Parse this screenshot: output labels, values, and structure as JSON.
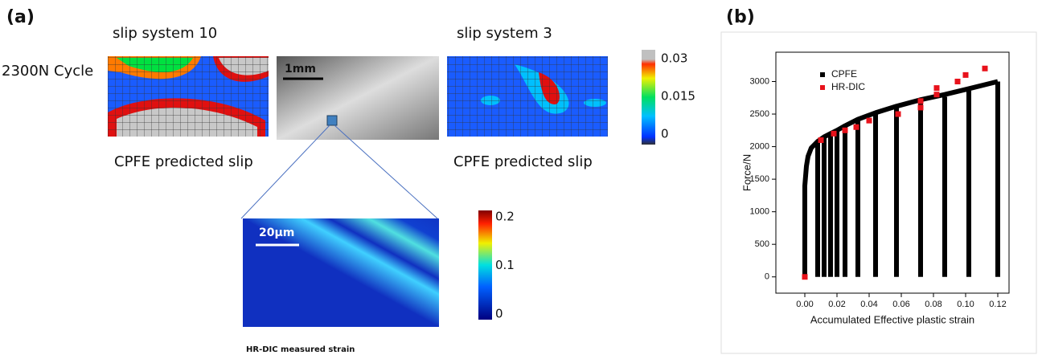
{
  "panel_a": {
    "label": "(a)",
    "title_left": "slip system 10",
    "title_right": "slip system 3",
    "row_label": "2300N Cycle",
    "scale_top": "1mm",
    "caption_left": "CPFE predicted slip",
    "caption_right": "CPFE predicted slip",
    "scale_bottom": "20µm",
    "caption_bottom": "HR-DIC measured strain",
    "colorbar_top": {
      "ticks": [
        0,
        0.015,
        0.03
      ],
      "lim": [
        0,
        0.03
      ]
    },
    "colorbar_bottom": {
      "ticks": [
        0,
        0.1,
        0.2
      ],
      "lim": [
        0,
        0.2
      ]
    }
  },
  "chart_data": {
    "type": "line",
    "label": "(b)",
    "x_label": "Accumulated Effective plastic strain",
    "y_label": "Force/N",
    "xlim": [
      -0.018,
      0.127
    ],
    "ylim": [
      -250,
      3450
    ],
    "xticks": [
      {
        "value": 0,
        "label": "0.00"
      },
      {
        "value": 0.02,
        "label": "0.02"
      },
      {
        "value": 0.04,
        "label": "0.04"
      },
      {
        "value": 0.06,
        "label": "0.06"
      },
      {
        "value": 0.08,
        "label": "0.08"
      },
      {
        "value": 0.1,
        "label": "0.10"
      },
      {
        "value": 0.12,
        "label": "0.12"
      }
    ],
    "yticks": [
      0,
      500,
      1000,
      1500,
      2000,
      2500,
      3000
    ],
    "legend": "upper-left",
    "series": [
      {
        "name": "CPFE",
        "color": "#000000",
        "kind": "line",
        "x": [
          0,
          0,
          0.001,
          0.002,
          0.004,
          0.008,
          0.012,
          0.016,
          0.02,
          0.025,
          0.033,
          0.044,
          0.057,
          0.072,
          0.087,
          0.102,
          0.12,
          null,
          0.008,
          0.008,
          null,
          0.012,
          0.012,
          null,
          0.016,
          0.016,
          null,
          0.02,
          0.02,
          null,
          0.025,
          0.025,
          null,
          0.033,
          0.033,
          null,
          0.044,
          0.044,
          null,
          0.057,
          0.057,
          null,
          0.072,
          0.072,
          null,
          0.087,
          0.087,
          null,
          0.102,
          0.102,
          null,
          0.12,
          0.12
        ],
        "values": [
          0,
          1400,
          1700,
          1850,
          1980,
          2080,
          2150,
          2200,
          2250,
          2320,
          2420,
          2520,
          2620,
          2720,
          2800,
          2890,
          3000,
          null,
          0,
          2080,
          null,
          0,
          2150,
          null,
          0,
          2200,
          null,
          0,
          2250,
          null,
          0,
          2320,
          null,
          0,
          2420,
          null,
          0,
          2520,
          null,
          0,
          2620,
          null,
          0,
          2720,
          null,
          0,
          2800,
          null,
          0,
          2890,
          null,
          0,
          3000
        ]
      },
      {
        "name": "HR-DIC",
        "color": "#e8121b",
        "kind": "scatter",
        "x": [
          0,
          0.01,
          0.018,
          0.025,
          0.032,
          0.04,
          0.058,
          0.072,
          0.072,
          0.082,
          0.082,
          0.095,
          0.1,
          0.112
        ],
        "values": [
          0,
          2100,
          2200,
          2250,
          2300,
          2400,
          2500,
          2600,
          2700,
          2800,
          2900,
          3000,
          3100,
          3200
        ]
      }
    ]
  }
}
